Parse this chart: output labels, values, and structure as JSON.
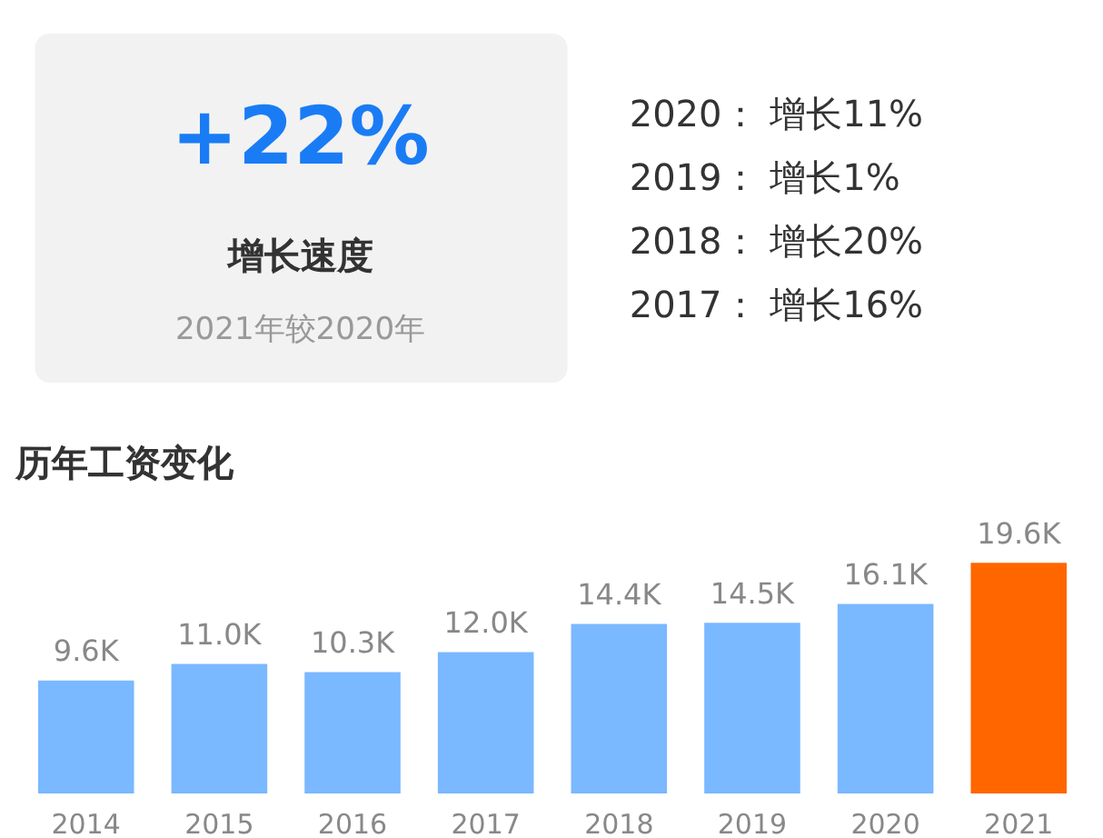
{
  "chart_data": [
    {
      "type": "other",
      "title": "+22%",
      "subtitle": "增长速度",
      "annotations": [
        "2021年较2020年",
        "2020： 增长11%",
        "2019： 增长1%",
        "2018： 增长20%",
        "2017： 增长16%"
      ]
    },
    {
      "type": "bar",
      "title": "历年工资变化",
      "categories": [
        "2014",
        "2015",
        "2016",
        "2017",
        "2018",
        "2019",
        "2020",
        "2021"
      ],
      "values": [
        9.6,
        11.0,
        10.3,
        12.0,
        14.4,
        14.5,
        16.1,
        19.6
      ],
      "value_labels": [
        "9.6K",
        "11.0K",
        "10.3K",
        "12.0K",
        "14.4K",
        "14.5K",
        "16.1K",
        "19.6K"
      ],
      "colors": [
        "#7ab8ff",
        "#7ab8ff",
        "#7ab8ff",
        "#7ab8ff",
        "#7ab8ff",
        "#7ab8ff",
        "#7ab8ff",
        "#ff6600"
      ]
    }
  ]
}
